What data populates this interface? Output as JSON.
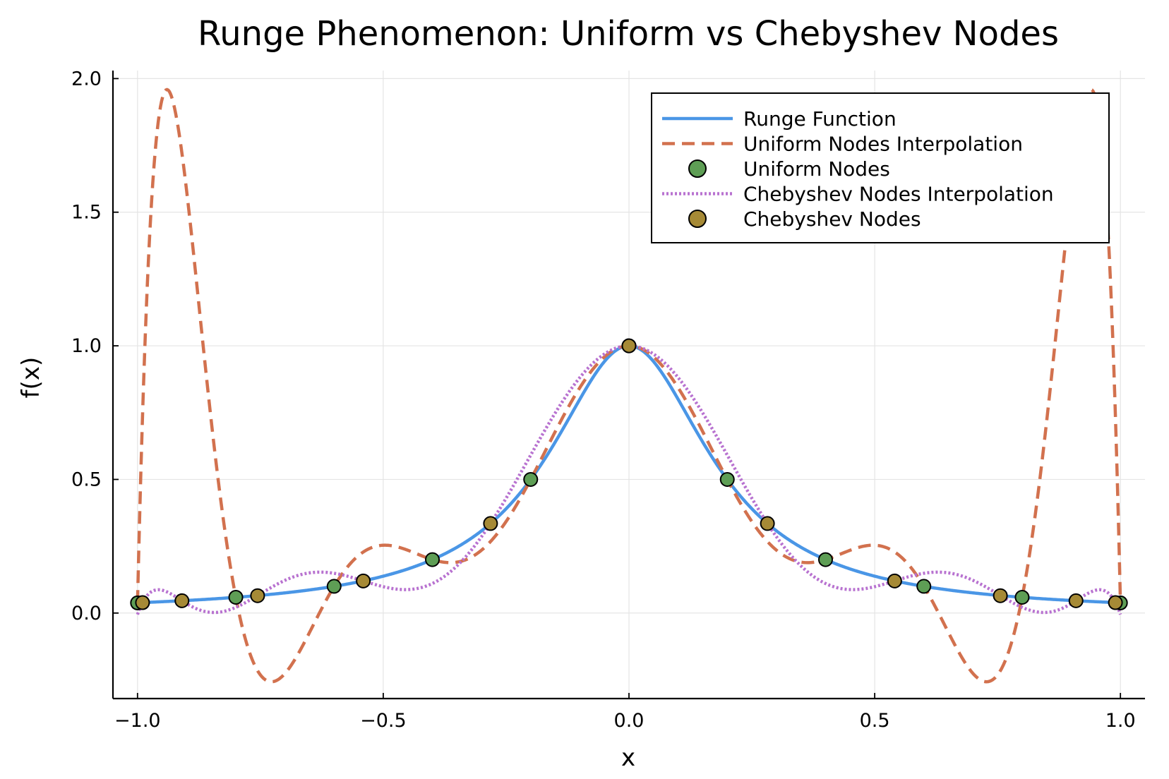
{
  "chart_data": {
    "type": "line",
    "title": "Runge Phenomenon: Uniform vs Chebyshev Nodes",
    "xlabel": "x",
    "ylabel": "f(x)",
    "xlim": [
      -1.05,
      1.05
    ],
    "ylim": [
      -0.32,
      2.03
    ],
    "xticks": [
      -1.0,
      -0.5,
      0.0,
      0.5,
      1.0
    ],
    "xtick_labels": [
      "−1.0",
      "−0.5",
      "0.0",
      "0.5",
      "1.0"
    ],
    "yticks": [
      0.0,
      0.5,
      1.0,
      1.5,
      2.0
    ],
    "ytick_labels": [
      "0.0",
      "0.5",
      "1.0",
      "1.5",
      "2.0"
    ],
    "grid": true,
    "legend_position": "top-right",
    "function": "1 / (1 + 25 x^2)",
    "series": [
      {
        "name": "Runge Function",
        "kind": "line",
        "style": "solid",
        "color": "#4a96e6"
      },
      {
        "name": "Uniform Nodes Interpolation",
        "kind": "line",
        "style": "dashed",
        "color": "#d2714e"
      },
      {
        "name": "Uniform Nodes",
        "kind": "scatter",
        "color": "#5e9e55",
        "x": [
          -1.0,
          -0.8,
          -0.6,
          -0.4,
          -0.2,
          0.0,
          0.2,
          0.4,
          0.6,
          0.8,
          1.0
        ],
        "y": [
          0.038,
          0.059,
          0.1,
          0.2,
          0.5,
          1.0,
          0.5,
          0.2,
          0.1,
          0.059,
          0.038
        ]
      },
      {
        "name": "Chebyshev Nodes Interpolation",
        "kind": "line",
        "style": "dotted",
        "color": "#b872d0"
      },
      {
        "name": "Chebyshev Nodes",
        "kind": "scatter",
        "color": "#a68a36",
        "x": [
          -0.9898,
          -0.9096,
          -0.7557,
          -0.5406,
          -0.2817,
          0.0,
          0.2817,
          0.5406,
          0.7557,
          0.9096,
          0.9898
        ],
        "y": [
          0.039,
          0.046,
          0.065,
          0.12,
          0.335,
          1.0,
          0.335,
          0.12,
          0.065,
          0.046,
          0.039
        ]
      }
    ]
  }
}
